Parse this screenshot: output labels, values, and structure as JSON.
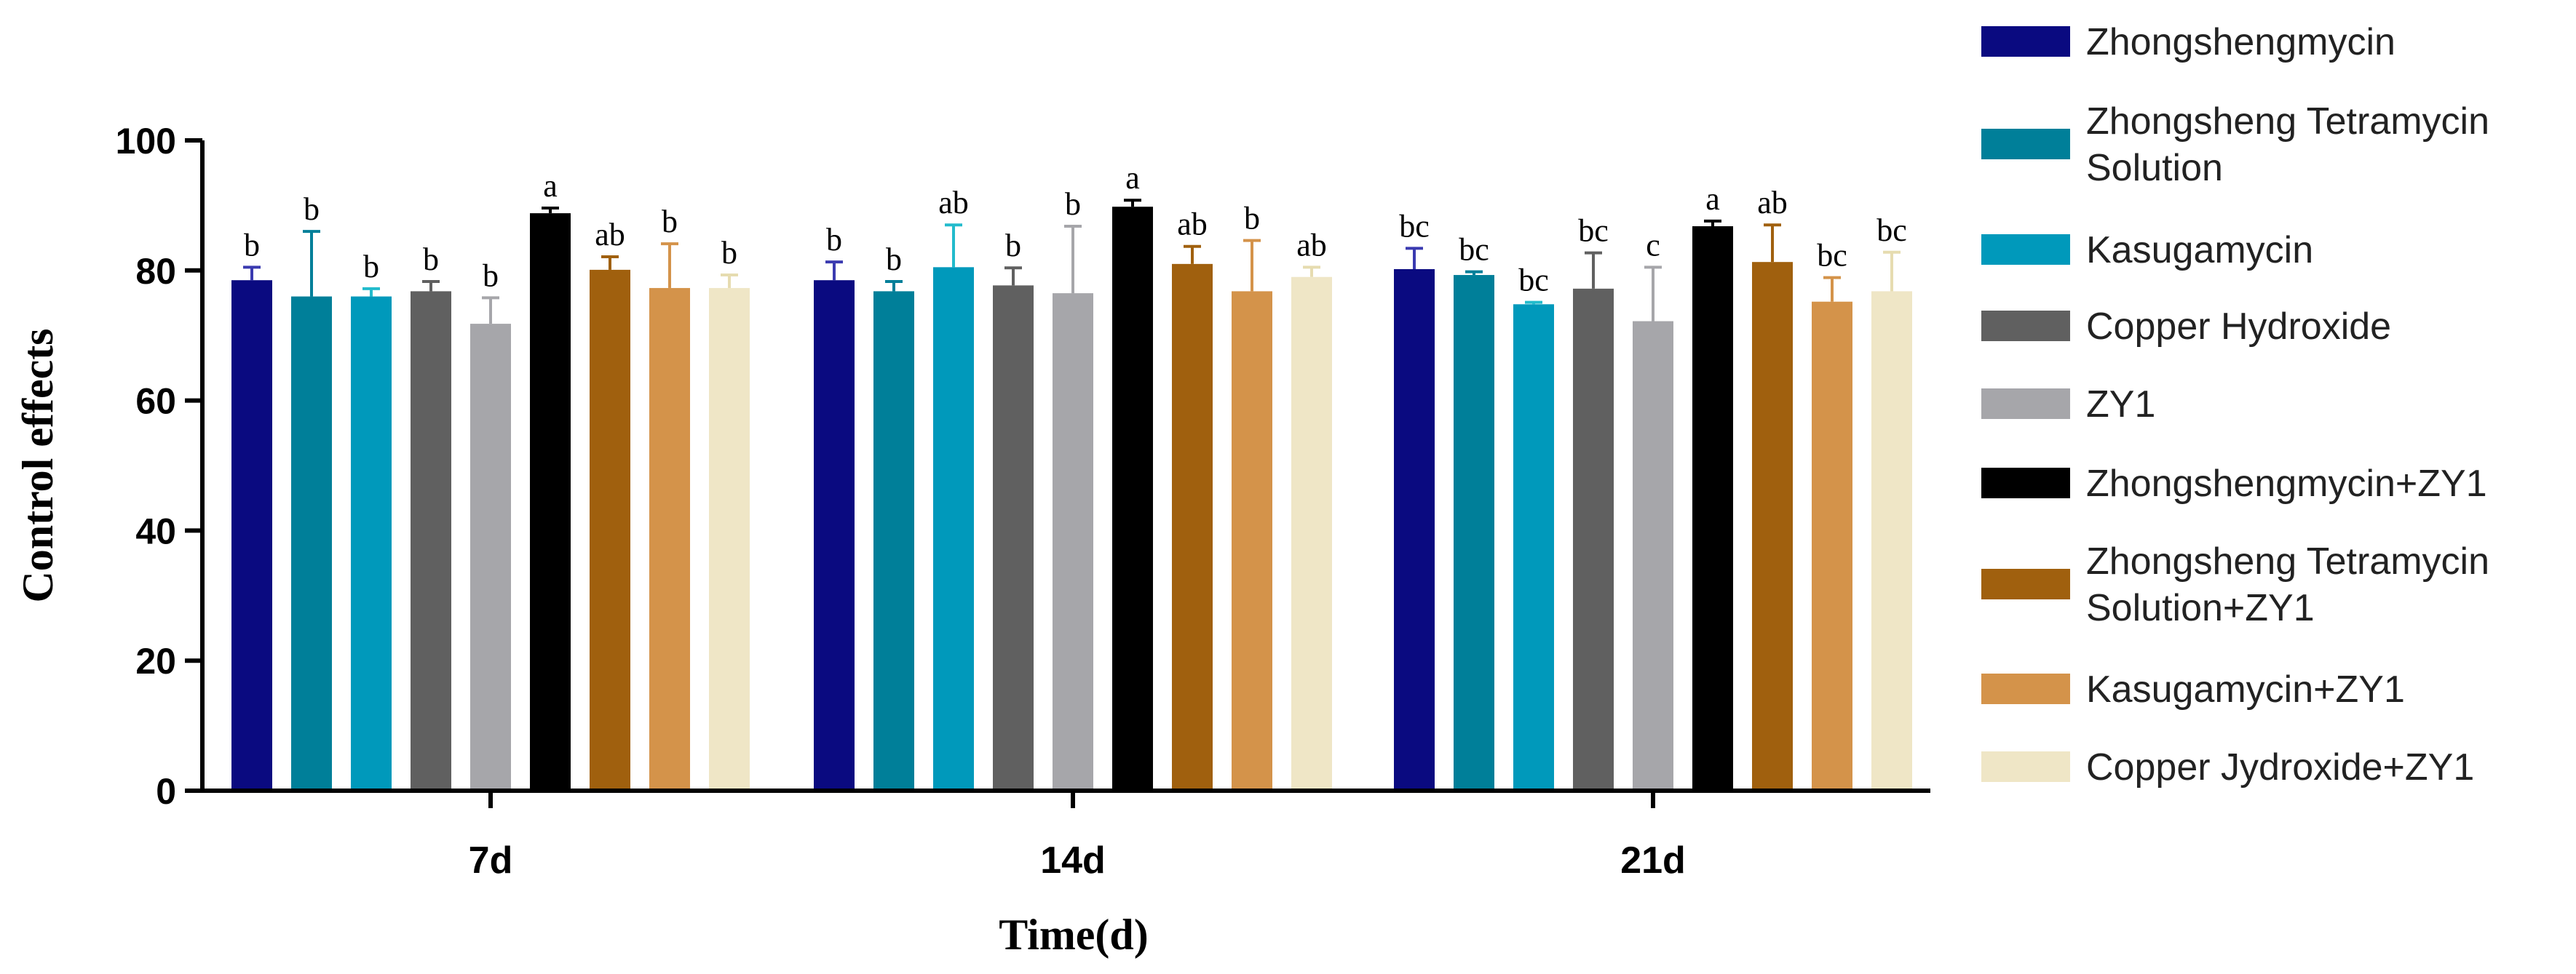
{
  "chart_data": {
    "type": "bar",
    "title": "",
    "xlabel": "Time(d)",
    "ylabel": "Control effects",
    "ylim": [
      0,
      100
    ],
    "yticks": [
      0,
      20,
      40,
      60,
      80,
      100
    ],
    "categories": [
      "7d",
      "14d",
      "21d"
    ],
    "legend_position": "right",
    "series": [
      {
        "name": "Zhongshengmycin",
        "color": "#0a0a80",
        "errcolor": "#3a3ab0",
        "values": [
          78.5,
          78.5,
          80.2
        ],
        "errors": [
          2.0,
          2.8,
          3.2
        ],
        "labels": [
          "b",
          "b",
          "bc"
        ]
      },
      {
        "name": "Zhongsheng Tetramycin Solution",
        "color": "#007f99",
        "errcolor": "#007f99",
        "values": [
          76.0,
          76.8,
          79.3
        ],
        "errors": [
          10.0,
          1.5,
          0.5
        ],
        "labels": [
          "b",
          "b",
          "bc"
        ]
      },
      {
        "name": "Kasugamycin",
        "color": "#0099bb",
        "errcolor": "#22bbcc",
        "values": [
          76.0,
          80.5,
          74.8
        ],
        "errors": [
          1.2,
          6.5,
          0.3
        ],
        "labels": [
          "b",
          "ab",
          "bc"
        ]
      },
      {
        "name": "Copper Hydroxide",
        "color": "#606060",
        "errcolor": "#606060",
        "values": [
          76.8,
          77.7,
          77.2
        ],
        "errors": [
          1.5,
          2.7,
          5.5
        ],
        "labels": [
          "b",
          "b",
          "bc"
        ]
      },
      {
        "name": "ZY1",
        "color": "#a6a6aa",
        "errcolor": "#a6a6aa",
        "values": [
          71.8,
          76.5,
          72.2
        ],
        "errors": [
          4.0,
          10.3,
          8.3
        ],
        "labels": [
          "b",
          "b",
          "c"
        ]
      },
      {
        "name": "Zhongshengmycin+ZY1",
        "color": "#000000",
        "errcolor": "#000000",
        "values": [
          88.8,
          89.8,
          86.8
        ],
        "errors": [
          0.8,
          1.0,
          0.8
        ],
        "labels": [
          "a",
          "a",
          "a"
        ]
      },
      {
        "name": "Zhongsheng Tetramycin Solution+ZY1",
        "color": "#a0600e",
        "errcolor": "#a0600e",
        "values": [
          80.1,
          81.0,
          81.3
        ],
        "errors": [
          2.0,
          2.7,
          5.7
        ],
        "labels": [
          "ab",
          "ab",
          "ab"
        ]
      },
      {
        "name": "Kasugamycin+ZY1",
        "color": "#d4934a",
        "errcolor": "#d4934a",
        "values": [
          77.3,
          76.8,
          75.2
        ],
        "errors": [
          6.8,
          7.8,
          3.7
        ],
        "labels": [
          "b",
          "b",
          "bc"
        ]
      },
      {
        "name": "Copper Jydroxide+ZY1",
        "color": "#efe6c6",
        "errcolor": "#e6dcb0",
        "values": [
          77.3,
          79.0,
          76.8
        ],
        "errors": [
          2.0,
          1.5,
          6.0
        ],
        "labels": [
          "b",
          "ab",
          "bc"
        ]
      }
    ],
    "legend_lines": [
      [
        "Zhongshengmycin"
      ],
      [
        "Zhongsheng Tetramycin",
        "Solution"
      ],
      [
        "Kasugamycin"
      ],
      [
        "Copper Hydroxide"
      ],
      [
        "ZY1"
      ],
      [
        "Zhongshengmycin+ZY1"
      ],
      [
        "Zhongsheng Tetramycin",
        "Solution+ZY1"
      ],
      [
        "Kasugamycin+ZY1"
      ],
      [
        "Copper Jydroxide+ZY1"
      ]
    ]
  }
}
